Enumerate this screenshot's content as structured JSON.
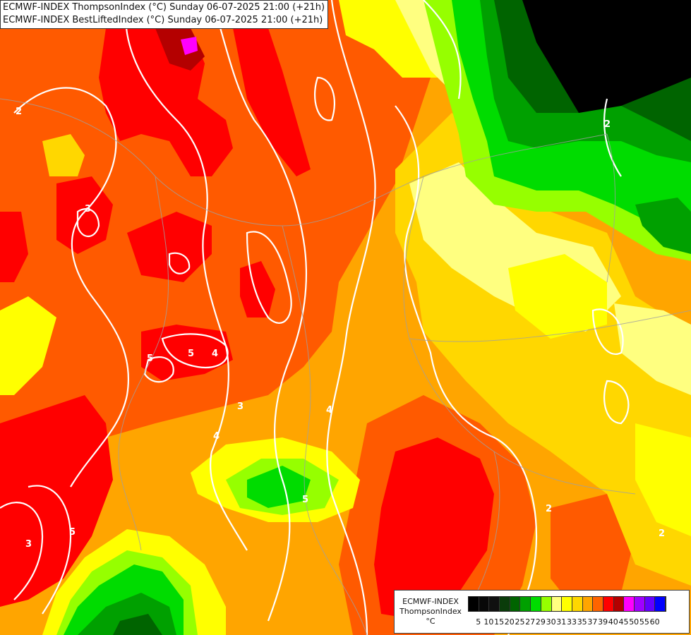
{
  "title": {
    "line1": "ECMWF-INDEX ThompsonIndex (°C) Sunday 06-07-2025 21:00 (+21h)",
    "line2": "ECMWF-INDEX BestLiftedIndex (°C) Sunday 06-07-2025 21:00 (+21h)"
  },
  "legend": {
    "title_line1": "ECMWF-INDEX",
    "title_line2": "ThompsonIndex",
    "unit": "°C",
    "colors": [
      "#000000",
      "#080808",
      "#101010",
      "#0a3c0a",
      "#006400",
      "#00a000",
      "#00dc00",
      "#96ff00",
      "#ffff80",
      "#ffff00",
      "#ffd700",
      "#ffa500",
      "#ff6400",
      "#ff0000",
      "#b40000",
      "#ff00ff",
      "#a000ff",
      "#6400ff",
      "#0000ff"
    ],
    "ticks": [
      "5",
      "10",
      "15",
      "20",
      "25",
      "27",
      "29",
      "30",
      "31",
      "33",
      "35",
      "37",
      "39",
      "40",
      "45",
      "50",
      "55",
      "60"
    ]
  },
  "contour_labels": [
    "2",
    "4",
    "5",
    "5",
    "3",
    "4",
    "3",
    "4",
    "5",
    "2",
    "2",
    "3",
    "5",
    "2"
  ],
  "colors": {
    "red": "#ff0000",
    "dark_red": "#b40000",
    "orange_red": "#ff5a00",
    "orange": "#ffa500",
    "gold": "#ffd700",
    "yellow": "#ffff00",
    "pale_yellow": "#ffff80",
    "lime": "#96ff00",
    "green": "#00dc00",
    "mid_green": "#00a000",
    "dark_green": "#006400",
    "black": "#000000",
    "magenta": "#ff00ff"
  }
}
